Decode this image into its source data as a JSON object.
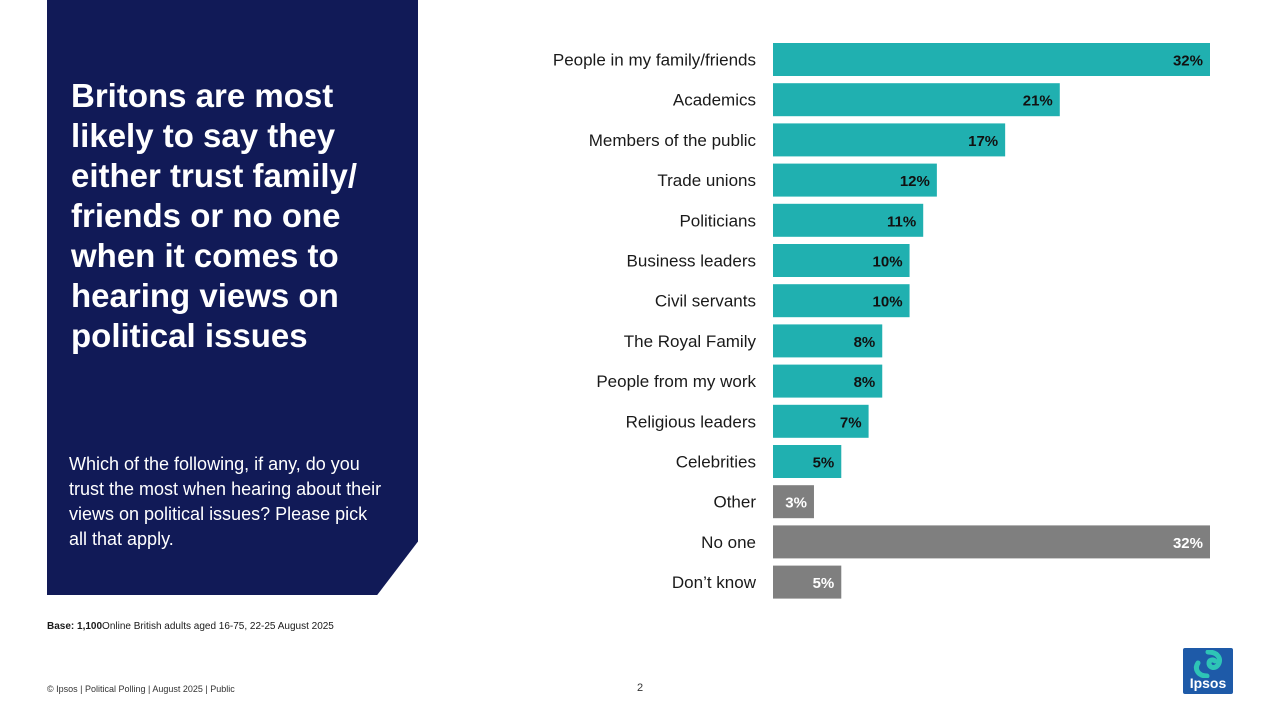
{
  "panel": {
    "title": "Britons are most likely to say they either trust family/ friends or no one when it comes to hearing views on political issues",
    "question": "Which of the following, if any, do you trust the most when hearing about their views on political issues?  Please pick all that apply."
  },
  "base": {
    "label": "Base: 1,100",
    "text": "Online British adults aged 16-75, 22-25 August 2025"
  },
  "footer": {
    "text": "© Ipsos | Political Polling | August 2025 | Public",
    "page": "2"
  },
  "logo": {
    "text": "Ipsos"
  },
  "colors": {
    "teal": "#20b0b0",
    "grey": "#7f7f7f",
    "navy": "#111a57"
  },
  "chart_data": {
    "type": "bar",
    "orientation": "horizontal",
    "unit": "%",
    "xlim": [
      0,
      32
    ],
    "categories": [
      "People in my family/friends",
      "Academics",
      "Members of the public",
      "Trade unions",
      "Politicians",
      "Business leaders",
      "Civil servants",
      "The Royal Family",
      "People from my work",
      "Religious leaders",
      "Celebrities",
      "Other",
      "No one",
      "Don’t know"
    ],
    "values": [
      32,
      21,
      17,
      12,
      11,
      10,
      10,
      8,
      8,
      7,
      5,
      3,
      32,
      5
    ],
    "labels": [
      "32%",
      "21%",
      "17%",
      "12%",
      "11%",
      "10%",
      "10%",
      "8%",
      "8%",
      "7%",
      "5%",
      "3%",
      "32%",
      "5%"
    ],
    "groups": [
      "teal",
      "teal",
      "teal",
      "teal",
      "teal",
      "teal",
      "teal",
      "teal",
      "teal",
      "teal",
      "teal",
      "grey",
      "grey",
      "grey"
    ]
  }
}
